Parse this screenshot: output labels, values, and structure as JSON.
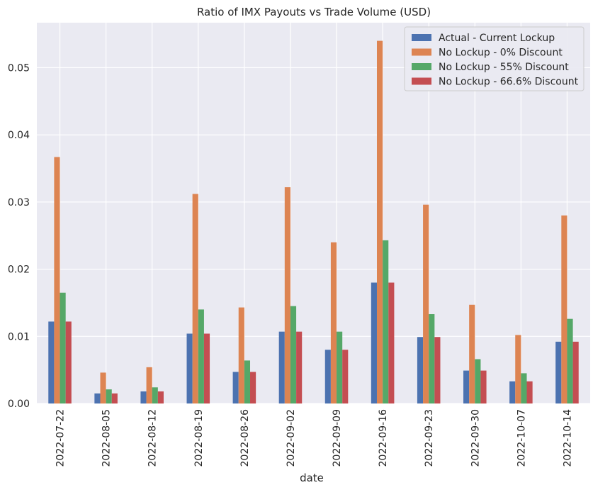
{
  "chart_data": {
    "type": "bar",
    "title": "Ratio of IMX Payouts vs Trade Volume (USD)",
    "xlabel": "date",
    "ylabel": "",
    "ylim": [
      0,
      0.0567
    ],
    "yticks": [
      "0.00",
      "0.01",
      "0.02",
      "0.03",
      "0.04",
      "0.05"
    ],
    "ytick_values": [
      0,
      0.01,
      0.02,
      0.03,
      0.04,
      0.05
    ],
    "grid": true,
    "legend_position": "top-right",
    "categories": [
      "2022-07-22",
      "2022-08-05",
      "2022-08-12",
      "2022-08-19",
      "2022-08-26",
      "2022-09-02",
      "2022-09-09",
      "2022-09-16",
      "2022-09-23",
      "2022-09-30",
      "2022-10-07",
      "2022-10-14"
    ],
    "series": [
      {
        "name": "Actual - Current Lockup",
        "color": "#4c72b0",
        "values": [
          0.0122,
          0.0015,
          0.0018,
          0.0104,
          0.0047,
          0.0107,
          0.008,
          0.018,
          0.0099,
          0.0049,
          0.0033,
          0.0092
        ]
      },
      {
        "name": "No Lockup - 0% Discount",
        "color": "#dd8452",
        "values": [
          0.0367,
          0.0046,
          0.0054,
          0.0312,
          0.0143,
          0.0322,
          0.024,
          0.054,
          0.0296,
          0.0147,
          0.0102,
          0.028
        ]
      },
      {
        "name": "No Lockup - 55% Discount",
        "color": "#55a868",
        "values": [
          0.0165,
          0.0021,
          0.0024,
          0.014,
          0.0064,
          0.0145,
          0.0107,
          0.0243,
          0.0133,
          0.0066,
          0.0045,
          0.0126
        ]
      },
      {
        "name": "No Lockup - 66.6% Discount",
        "color": "#c44e52",
        "values": [
          0.0122,
          0.0015,
          0.0018,
          0.0104,
          0.0047,
          0.0107,
          0.008,
          0.018,
          0.0099,
          0.0049,
          0.0033,
          0.0092
        ]
      }
    ]
  },
  "colors": {
    "plot_background": "#eaeaf2",
    "grid": "#ffffff",
    "text": "#262626"
  }
}
